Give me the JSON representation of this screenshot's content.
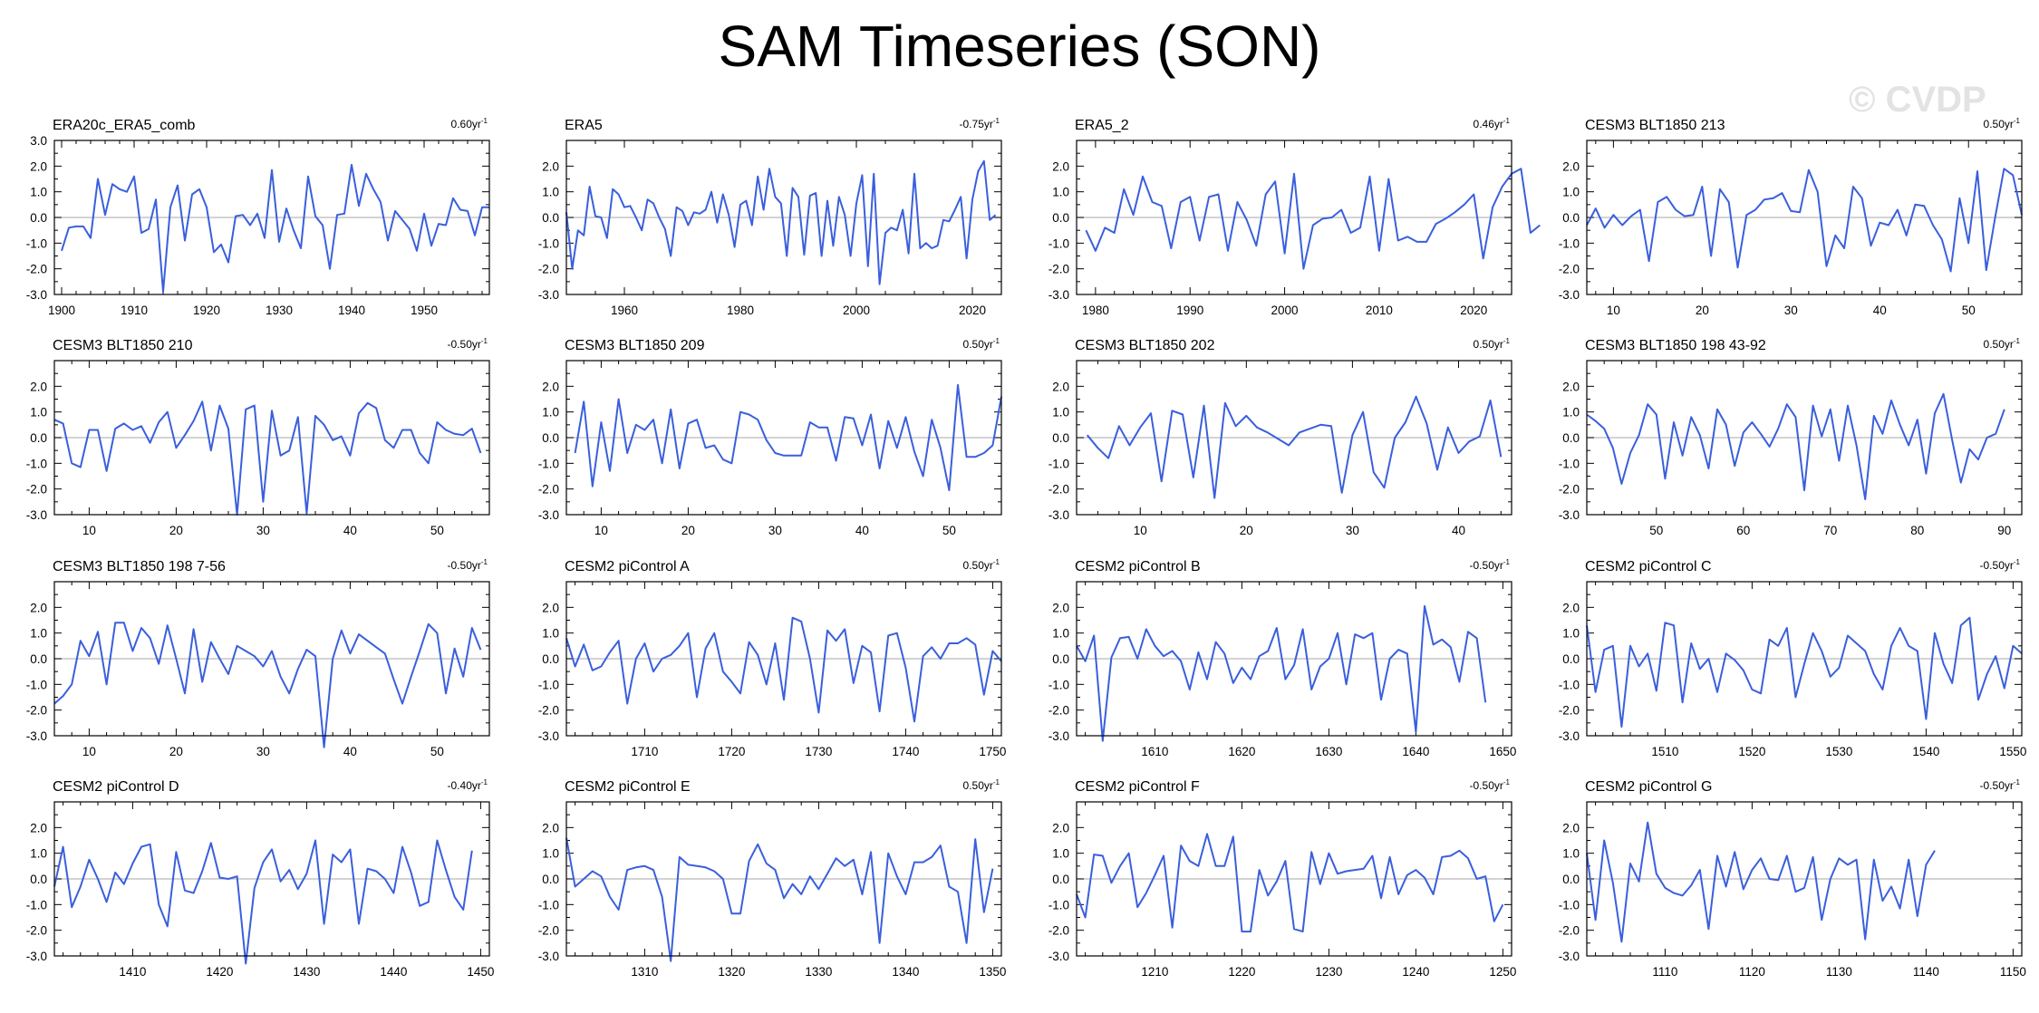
{
  "title": "SAM Timeseries (SON)",
  "watermark": "© CVDP",
  "colors": {
    "line": "#3a5fdc",
    "zero": "#b9b9b9",
    "axis": "#000000"
  },
  "chart_data": [
    {
      "type": "line",
      "title": "ERA20c_ERA5_comb",
      "trend": "0.60yr",
      "xlim": [
        1899,
        1959
      ],
      "ylim": [
        -3,
        3
      ],
      "xticks": [
        1900,
        1910,
        1920,
        1930,
        1940,
        1950
      ],
      "yticks": [
        3,
        2,
        1,
        0,
        -1,
        -2,
        -3
      ],
      "x_start": 1900,
      "values": [
        -1.3,
        -0.4,
        -0.35,
        -0.35,
        -0.8,
        1.5,
        0.1,
        1.3,
        1.1,
        1.0,
        1.6,
        -0.6,
        -0.45,
        0.7,
        -2.9,
        0.4,
        1.25,
        -0.9,
        0.9,
        1.1,
        0.4,
        -1.35,
        -1.05,
        -1.75,
        0.05,
        0.1,
        -0.3,
        0.15,
        -0.8,
        1.85,
        -0.95,
        0.35,
        -0.5,
        -1.2,
        1.6,
        0.05,
        -0.3,
        -2.0,
        0.1,
        0.15,
        2.05,
        0.45,
        1.7,
        1.1,
        0.6,
        -0.9,
        0.25,
        -0.1,
        -0.45,
        -1.3,
        0.15,
        -1.1,
        -0.25,
        -0.3,
        0.75,
        0.3,
        0.25,
        -0.7,
        0.4,
        0.4
      ]
    },
    {
      "type": "line",
      "title": "ERA5",
      "trend": "-0.75yr",
      "xlim": [
        1950,
        2025
      ],
      "ylim": [
        -3,
        3
      ],
      "xticks": [
        1960,
        1980,
        2000,
        2020
      ],
      "yticks": [
        2,
        1,
        0,
        -1,
        -2,
        -3
      ],
      "x_start": 1950,
      "values": [
        0.2,
        -2.0,
        -0.5,
        -0.7,
        1.2,
        0.05,
        0.0,
        -0.8,
        1.1,
        0.9,
        0.4,
        0.45,
        0.0,
        -0.5,
        0.7,
        0.55,
        0.0,
        -0.45,
        -1.5,
        0.4,
        0.25,
        -0.3,
        0.2,
        0.15,
        0.3,
        1.0,
        -0.2,
        0.9,
        0.1,
        -1.15,
        0.5,
        0.65,
        -0.3,
        1.6,
        0.3,
        1.9,
        0.8,
        0.55,
        -1.5,
        1.15,
        0.8,
        -1.45,
        0.85,
        0.95,
        -1.5,
        0.65,
        -1.1,
        0.8,
        0.1,
        -1.5,
        0.55,
        1.65,
        -1.9,
        1.7,
        -2.6,
        -0.6,
        -0.4,
        -0.5,
        0.3,
        -1.4,
        1.7,
        -1.2,
        -1.0,
        -1.2,
        -1.1,
        -0.1,
        -0.15,
        0.3,
        0.8,
        -1.6,
        0.7,
        1.8,
        2.2,
        -0.1,
        0.1
      ]
    },
    {
      "type": "line",
      "title": "ERA5_2",
      "trend": "0.46yr",
      "xlim": [
        1978,
        2024
      ],
      "ylim": [
        -3,
        3
      ],
      "xticks": [
        1980,
        1990,
        2000,
        2010,
        2020
      ],
      "yticks": [
        2,
        1,
        0,
        -1,
        -2,
        -3
      ],
      "x_start": 1979,
      "values": [
        -0.5,
        -1.3,
        -0.4,
        -0.6,
        1.1,
        0.1,
        1.6,
        0.6,
        0.45,
        -1.2,
        0.6,
        0.8,
        -0.9,
        0.8,
        0.9,
        -1.3,
        0.6,
        -0.1,
        -1.1,
        0.9,
        1.4,
        -1.4,
        1.7,
        -2.0,
        -0.3,
        -0.05,
        0.0,
        0.3,
        -0.6,
        -0.4,
        1.6,
        -1.3,
        1.5,
        -0.9,
        -0.75,
        -0.95,
        -0.95,
        -0.25,
        -0.05,
        0.2,
        0.5,
        0.9,
        -1.6,
        0.4,
        1.2,
        1.7,
        1.9,
        -0.6,
        -0.3
      ]
    },
    {
      "type": "line",
      "title": "CESM3 BLT1850 213",
      "trend": "0.50yr",
      "xlim": [
        7,
        56
      ],
      "ylim": [
        -3,
        3
      ],
      "xticks": [
        10,
        20,
        30,
        40,
        50
      ],
      "yticks": [
        2,
        1,
        0,
        -1,
        -2,
        -3
      ],
      "x_start": 7,
      "values": [
        -0.3,
        0.35,
        -0.4,
        0.1,
        -0.3,
        0.05,
        0.3,
        -1.7,
        0.6,
        0.8,
        0.3,
        0.05,
        0.1,
        1.2,
        -1.5,
        1.1,
        0.6,
        -1.95,
        0.1,
        0.3,
        0.7,
        0.75,
        0.95,
        0.25,
        0.2,
        1.85,
        1.0,
        -1.9,
        -0.7,
        -1.2,
        1.2,
        0.75,
        -1.1,
        -0.2,
        -0.3,
        0.3,
        -0.7,
        0.5,
        0.45,
        -0.3,
        -0.85,
        -2.1,
        0.75,
        -1.0,
        1.8,
        -2.05,
        0.0,
        1.9,
        1.65,
        0.1
      ]
    },
    {
      "type": "line",
      "title": "CESM3 BLT1850 210",
      "trend": "-0.50yr",
      "xlim": [
        6,
        56
      ],
      "ylim": [
        -3,
        3
      ],
      "xticks": [
        10,
        20,
        30,
        40,
        50
      ],
      "yticks": [
        2,
        1,
        0,
        -1,
        -2,
        -3
      ],
      "x_start": 6,
      "values": [
        0.7,
        0.55,
        -1.0,
        -1.15,
        0.3,
        0.3,
        -1.3,
        0.35,
        0.55,
        0.3,
        0.45,
        -0.2,
        0.6,
        1.0,
        -0.4,
        0.1,
        0.65,
        1.4,
        -0.5,
        1.25,
        0.35,
        -3.0,
        1.1,
        1.25,
        -2.5,
        1.05,
        -0.7,
        -0.5,
        0.8,
        -2.95,
        0.85,
        0.5,
        -0.1,
        0.05,
        -0.7,
        0.95,
        1.35,
        1.15,
        -0.1,
        -0.4,
        0.3,
        0.3,
        -0.6,
        -1.0,
        0.6,
        0.3,
        0.15,
        0.1,
        0.35,
        -0.6
      ]
    },
    {
      "type": "line",
      "title": "CESM3 BLT1850 209",
      "trend": "0.50yr",
      "xlim": [
        6,
        56
      ],
      "ylim": [
        -3,
        3
      ],
      "xticks": [
        10,
        20,
        30,
        40,
        50
      ],
      "yticks": [
        2,
        1,
        0,
        -1,
        -2,
        -3
      ],
      "x_start": 7,
      "values": [
        -0.6,
        1.4,
        -1.9,
        0.6,
        -1.3,
        1.5,
        -0.6,
        0.5,
        0.3,
        0.7,
        -1.0,
        1.1,
        -1.2,
        0.55,
        0.7,
        -0.4,
        -0.3,
        -0.85,
        -1.0,
        1.0,
        0.9,
        0.7,
        -0.1,
        -0.6,
        -0.7,
        -0.7,
        -0.7,
        0.6,
        0.4,
        0.4,
        -0.9,
        0.8,
        0.75,
        -0.3,
        0.9,
        -1.2,
        0.65,
        -0.4,
        0.8,
        -0.55,
        -1.5,
        0.7,
        -0.4,
        -2.05,
        2.05,
        -0.75,
        -0.75,
        -0.6,
        -0.3,
        1.6
      ]
    },
    {
      "type": "line",
      "title": "CESM3 BLT1850 202",
      "trend": "0.50yr",
      "xlim": [
        4,
        45
      ],
      "ylim": [
        -3,
        3
      ],
      "xticks": [
        10,
        20,
        30,
        40
      ],
      "yticks": [
        2,
        1,
        0,
        -1,
        -2,
        -3
      ],
      "x_start": 5,
      "values": [
        0.1,
        -0.4,
        -0.8,
        0.45,
        -0.3,
        0.4,
        0.95,
        -1.7,
        1.05,
        0.9,
        -1.55,
        1.25,
        -2.35,
        1.35,
        0.45,
        0.85,
        0.4,
        0.2,
        -0.05,
        -0.3,
        0.2,
        0.35,
        0.5,
        0.45,
        -2.15,
        0.1,
        1.0,
        -1.35,
        -1.95,
        0.0,
        0.6,
        1.6,
        0.55,
        -1.25,
        0.4,
        -0.6,
        -0.15,
        0.05,
        1.45,
        -0.75
      ]
    },
    {
      "type": "line",
      "title": "CESM3 BLT1850 198 43-92",
      "trend": "0.50yr",
      "xlim": [
        42,
        92
      ],
      "ylim": [
        -3,
        3
      ],
      "xticks": [
        50,
        60,
        70,
        80,
        90
      ],
      "yticks": [
        2,
        1,
        0,
        -1,
        -2,
        -3
      ],
      "x_start": 42,
      "values": [
        0.9,
        0.65,
        0.35,
        -0.4,
        -1.8,
        -0.6,
        0.1,
        1.3,
        0.9,
        -1.6,
        0.6,
        -0.7,
        0.8,
        0.1,
        -1.2,
        1.1,
        0.5,
        -1.1,
        0.2,
        0.6,
        0.15,
        -0.35,
        0.35,
        1.3,
        0.8,
        -2.05,
        1.25,
        0.05,
        1.1,
        -0.9,
        1.25,
        -0.3,
        -2.4,
        0.85,
        0.15,
        1.45,
        0.5,
        -0.3,
        0.7,
        -1.4,
        0.95,
        1.7,
        -0.1,
        -1.75,
        -0.45,
        -0.85,
        0.0,
        0.15,
        1.1
      ]
    },
    {
      "type": "line",
      "title": "CESM3 BLT1850 198 7-56",
      "trend": "-0.50yr",
      "xlim": [
        6,
        56
      ],
      "ylim": [
        -3,
        3
      ],
      "xticks": [
        10,
        20,
        30,
        40,
        50
      ],
      "yticks": [
        2,
        1,
        0,
        -1,
        -2,
        -3
      ],
      "x_start": 6,
      "values": [
        -1.75,
        -1.45,
        -1.0,
        0.7,
        0.1,
        1.05,
        -1.0,
        1.4,
        1.4,
        0.3,
        1.2,
        0.8,
        -0.2,
        1.3,
        0.0,
        -1.35,
        1.15,
        -0.9,
        0.65,
        0.0,
        -0.6,
        0.5,
        0.3,
        0.1,
        -0.3,
        0.3,
        -0.7,
        -1.35,
        -0.4,
        0.35,
        0.1,
        -3.45,
        0.0,
        1.1,
        0.2,
        0.95,
        0.7,
        0.45,
        0.2,
        -0.8,
        -1.75,
        -0.7,
        0.3,
        1.35,
        1.0,
        -1.35,
        0.4,
        -0.7,
        1.2,
        0.35
      ]
    },
    {
      "type": "line",
      "title": "CESM2 piControl A",
      "trend": "0.50yr",
      "xlim": [
        1701,
        1751
      ],
      "ylim": [
        -3,
        3
      ],
      "xticks": [
        1710,
        1720,
        1730,
        1740,
        1750
      ],
      "yticks": [
        2,
        1,
        0,
        -1,
        -2,
        -3
      ],
      "x_start": 1701,
      "values": [
        0.8,
        -0.3,
        0.55,
        -0.45,
        -0.3,
        0.25,
        0.7,
        -1.75,
        0.0,
        0.6,
        -0.5,
        0.0,
        0.15,
        0.5,
        1.0,
        -1.5,
        0.4,
        1.0,
        -0.5,
        -0.9,
        -1.35,
        0.65,
        0.15,
        -1.0,
        0.6,
        -1.6,
        1.6,
        1.45,
        0.0,
        -2.1,
        1.1,
        0.7,
        1.15,
        -0.95,
        0.5,
        0.25,
        -2.05,
        0.9,
        1.0,
        -0.35,
        -2.45,
        0.1,
        0.45,
        0.0,
        0.6,
        0.6,
        0.8,
        0.55,
        -1.4,
        0.3,
        -0.1
      ]
    },
    {
      "type": "line",
      "title": "CESM2 piControl B",
      "trend": "-0.50yr",
      "xlim": [
        1601,
        1651
      ],
      "ylim": [
        -3,
        3
      ],
      "xticks": [
        1610,
        1620,
        1630,
        1640,
        1650
      ],
      "yticks": [
        2,
        1,
        0,
        -1,
        -2,
        -3
      ],
      "x_start": 1601,
      "values": [
        0.5,
        -0.1,
        0.9,
        -3.2,
        0.05,
        0.8,
        0.85,
        0.0,
        1.15,
        0.5,
        0.1,
        0.3,
        -0.1,
        -1.2,
        0.25,
        -0.8,
        0.65,
        0.2,
        -0.95,
        -0.35,
        -0.8,
        0.1,
        0.3,
        1.2,
        -0.8,
        -0.25,
        1.15,
        -1.2,
        -0.3,
        0.0,
        1.0,
        -1.0,
        0.95,
        0.8,
        1.0,
        -1.6,
        0.0,
        0.35,
        0.2,
        -2.85,
        2.05,
        0.55,
        0.75,
        0.45,
        -0.9,
        1.05,
        0.8,
        -1.7
      ]
    },
    {
      "type": "line",
      "title": "CESM2 piControl C",
      "trend": "-0.50yr",
      "xlim": [
        1501,
        1551
      ],
      "ylim": [
        -3,
        3
      ],
      "xticks": [
        1510,
        1520,
        1530,
        1540,
        1550
      ],
      "yticks": [
        2,
        1,
        0,
        -1,
        -2,
        -3
      ],
      "x_start": 1501,
      "values": [
        1.3,
        -1.3,
        0.35,
        0.5,
        -2.65,
        0.5,
        -0.3,
        0.2,
        -1.25,
        1.4,
        1.3,
        -1.7,
        0.6,
        -0.4,
        0.0,
        -1.3,
        0.2,
        -0.05,
        -0.45,
        -1.2,
        -1.35,
        0.75,
        0.5,
        1.2,
        -1.5,
        -0.2,
        1.0,
        0.3,
        -0.7,
        -0.35,
        0.9,
        0.6,
        0.3,
        -0.6,
        -1.2,
        0.5,
        1.2,
        0.5,
        0.3,
        -2.35,
        1.0,
        -0.2,
        -0.95,
        1.3,
        1.6,
        -1.6,
        -0.6,
        0.1,
        -1.15,
        0.5,
        0.2
      ]
    },
    {
      "type": "line",
      "title": "CESM2 piControl D",
      "trend": "-0.40yr",
      "xlim": [
        1401,
        1451
      ],
      "ylim": [
        -3,
        3
      ],
      "xticks": [
        1410,
        1420,
        1430,
        1440,
        1450
      ],
      "yticks": [
        2,
        1,
        0,
        -1,
        -2,
        -3
      ],
      "x_start": 1401,
      "values": [
        -0.3,
        1.25,
        -1.1,
        -0.3,
        0.75,
        0.0,
        -0.9,
        0.25,
        -0.2,
        0.6,
        1.25,
        1.35,
        -1.0,
        -1.85,
        1.05,
        -0.45,
        -0.55,
        0.3,
        1.4,
        0.05,
        0.0,
        0.1,
        -3.3,
        -0.35,
        0.65,
        1.15,
        -0.1,
        0.35,
        -0.4,
        0.2,
        1.5,
        -1.75,
        0.95,
        0.65,
        1.15,
        -1.75,
        0.4,
        0.3,
        0.0,
        -0.55,
        1.25,
        0.25,
        -1.05,
        -0.9,
        1.5,
        0.35,
        -0.7,
        -1.2,
        1.1
      ]
    },
    {
      "type": "line",
      "title": "CESM2 piControl E",
      "trend": "0.50yr",
      "xlim": [
        1301,
        1351
      ],
      "ylim": [
        -3,
        3
      ],
      "xticks": [
        1310,
        1320,
        1330,
        1340,
        1350
      ],
      "yticks": [
        2,
        1,
        0,
        -1,
        -2,
        -3
      ],
      "x_start": 1301,
      "values": [
        1.6,
        -0.3,
        0.0,
        0.3,
        0.1,
        -0.7,
        -1.2,
        0.35,
        0.45,
        0.5,
        0.35,
        -0.7,
        -3.2,
        0.85,
        0.55,
        0.5,
        0.45,
        0.3,
        0.0,
        -1.35,
        -1.35,
        0.7,
        1.35,
        0.6,
        0.35,
        -0.75,
        -0.2,
        -0.6,
        0.1,
        -0.4,
        0.2,
        0.8,
        0.5,
        0.75,
        -0.6,
        1.05,
        -2.5,
        1.0,
        0.1,
        -0.6,
        0.65,
        0.65,
        0.85,
        1.3,
        -0.3,
        -0.5,
        -2.5,
        1.55,
        -1.3,
        0.4
      ]
    },
    {
      "type": "line",
      "title": "CESM2 piControl F",
      "trend": "-0.50yr",
      "xlim": [
        1201,
        1251
      ],
      "ylim": [
        -3,
        3
      ],
      "xticks": [
        1210,
        1220,
        1230,
        1240,
        1250
      ],
      "yticks": [
        2,
        1,
        0,
        -1,
        -2,
        -3
      ],
      "x_start": 1201,
      "values": [
        -0.6,
        -1.5,
        0.95,
        0.9,
        -0.15,
        0.5,
        1.0,
        -1.1,
        -0.55,
        0.15,
        0.9,
        -1.9,
        1.3,
        0.7,
        0.5,
        1.75,
        0.5,
        0.5,
        1.65,
        -2.05,
        -2.05,
        0.35,
        -0.65,
        -0.1,
        0.7,
        -1.95,
        -2.05,
        1.05,
        -0.2,
        1.0,
        0.2,
        0.3,
        0.35,
        0.4,
        0.9,
        -0.75,
        0.85,
        -0.6,
        0.15,
        0.35,
        0.05,
        -0.6,
        0.85,
        0.9,
        1.1,
        0.8,
        0.0,
        0.1,
        -1.65,
        -1.0
      ]
    },
    {
      "type": "line",
      "title": "CESM2 piControl G",
      "trend": "-0.50yr",
      "xlim": [
        1101,
        1151
      ],
      "ylim": [
        -3,
        3
      ],
      "xticks": [
        1110,
        1120,
        1130,
        1140,
        1150
      ],
      "yticks": [
        2,
        1,
        0,
        -1,
        -2,
        -3
      ],
      "x_start": 1101,
      "values": [
        1.0,
        -1.6,
        1.5,
        -0.15,
        -2.45,
        0.6,
        -0.1,
        2.2,
        0.2,
        -0.35,
        -0.55,
        -0.65,
        -0.25,
        0.35,
        -1.95,
        0.9,
        -0.3,
        1.05,
        -0.4,
        0.35,
        0.8,
        0.0,
        -0.05,
        0.9,
        -0.5,
        -0.35,
        0.85,
        -1.6,
        0.0,
        0.8,
        0.55,
        0.75,
        -2.35,
        0.75,
        -0.85,
        -0.3,
        -1.15,
        0.75,
        -1.45,
        0.55,
        1.1
      ]
    }
  ]
}
